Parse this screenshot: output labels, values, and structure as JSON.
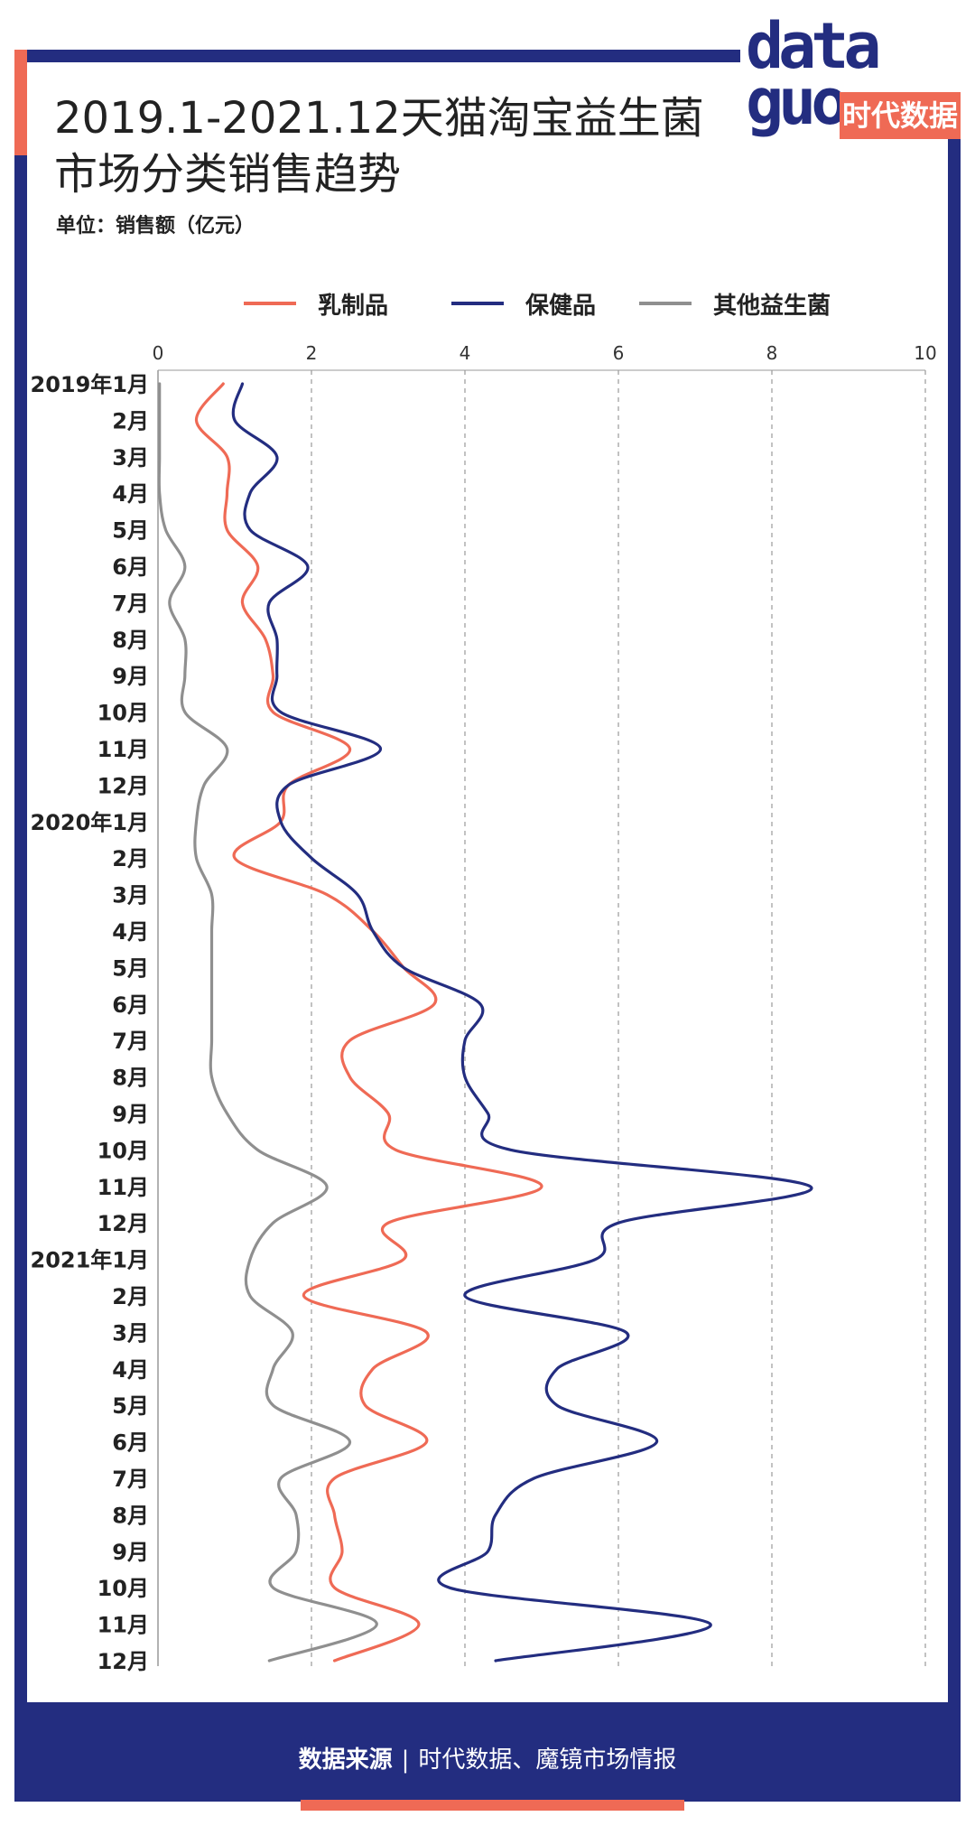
{
  "title_lines": [
    "2019.1-2021.12天猫淘宝益生菌",
    "市场分类销售趋势"
  ],
  "unit": "单位：销售额（亿元）",
  "logo": {
    "word_top": "data",
    "word_bottom": "guo",
    "tag": "时代数据"
  },
  "footer": {
    "label": "数据来源",
    "separator": "|",
    "source": "时代数据、魔镜市场情报"
  },
  "colors": {
    "dairy": "#ef6a55",
    "health": "#232d80",
    "other": "#8f8f8f",
    "frame": "#232d80",
    "accent": "#ef6a55"
  },
  "chart_data": {
    "type": "line",
    "orientation": "horizontal",
    "title": "2019.1-2021.12天猫淘宝益生菌市场分类销售趋势",
    "xlabel": "销售额（亿元）",
    "xlim": [
      0,
      10
    ],
    "xticks": [
      0,
      2,
      4,
      6,
      8,
      10
    ],
    "grid": true,
    "legend_position": "top",
    "categories": [
      "2019年1月",
      "2月",
      "3月",
      "4月",
      "5月",
      "6月",
      "7月",
      "8月",
      "9月",
      "10月",
      "11月",
      "12月",
      "2020年1月",
      "2月",
      "3月",
      "4月",
      "5月",
      "6月",
      "7月",
      "8月",
      "9月",
      "10月",
      "11月",
      "12月",
      "2021年1月",
      "2月",
      "3月",
      "4月",
      "5月",
      "6月",
      "7月",
      "8月",
      "9月",
      "10月",
      "11月",
      "12月"
    ],
    "series": [
      {
        "name": "乳制品",
        "key": "dairy",
        "values": [
          0.85,
          0.5,
          0.9,
          0.9,
          0.9,
          1.3,
          1.1,
          1.4,
          1.5,
          1.5,
          2.5,
          1.7,
          1.6,
          1.0,
          2.2,
          2.8,
          3.2,
          3.6,
          2.5,
          2.5,
          3.0,
          3.1,
          5.0,
          3.0,
          3.2,
          1.9,
          3.5,
          2.8,
          2.7,
          3.5,
          2.3,
          2.3,
          2.4,
          2.3,
          3.4,
          2.3
        ]
      },
      {
        "name": "保健品",
        "key": "health",
        "values": [
          1.1,
          1.0,
          1.55,
          1.2,
          1.2,
          1.95,
          1.45,
          1.55,
          1.55,
          1.6,
          2.9,
          1.7,
          1.6,
          2.0,
          2.6,
          2.8,
          3.2,
          4.2,
          4.0,
          4.0,
          4.3,
          4.6,
          8.5,
          6.0,
          5.7,
          4.0,
          6.1,
          5.2,
          5.2,
          6.5,
          4.9,
          4.4,
          4.3,
          3.8,
          7.2,
          4.4
        ]
      },
      {
        "name": "其他益生菌",
        "key": "other",
        "values": [
          0.02,
          0.02,
          0.02,
          0.02,
          0.1,
          0.35,
          0.15,
          0.35,
          0.35,
          0.35,
          0.9,
          0.6,
          0.5,
          0.5,
          0.7,
          0.7,
          0.7,
          0.7,
          0.7,
          0.7,
          0.9,
          1.3,
          2.2,
          1.5,
          1.2,
          1.2,
          1.75,
          1.5,
          1.5,
          2.5,
          1.6,
          1.8,
          1.8,
          1.5,
          2.85,
          1.45
        ]
      }
    ]
  }
}
